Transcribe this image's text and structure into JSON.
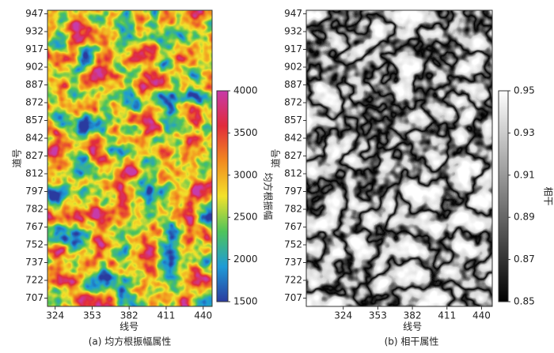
{
  "chart_data": [
    {
      "type": "heatmap",
      "caption": "(a) 均方根振幅属性",
      "xlabel": "线号",
      "ylabel": "道号",
      "xlim": [
        318,
        447
      ],
      "xticks": [
        324,
        353,
        382,
        411,
        440
      ],
      "ylim": [
        700,
        950
      ],
      "yticks": [
        707,
        722,
        737,
        752,
        767,
        782,
        797,
        812,
        827,
        842,
        857,
        872,
        887,
        902,
        917,
        932,
        947
      ],
      "colorbar_label": "均方根振幅",
      "clim": [
        1500,
        4000
      ],
      "cticks": [
        1500,
        2000,
        2500,
        3000,
        3500,
        4000
      ],
      "colormap": [
        "#2b3b9f",
        "#1e9bd7",
        "#4fc45a",
        "#f3e22b",
        "#f28a1f",
        "#e12b3b",
        "#c73ba9"
      ]
    },
    {
      "type": "heatmap",
      "caption": "(b) 相干属性",
      "xlabel": "线号",
      "ylabel": "道号",
      "xlim": [
        293,
        449
      ],
      "xticks": [
        324,
        353,
        382,
        411,
        440
      ],
      "ylim": [
        700,
        950
      ],
      "yticks": [
        707,
        722,
        737,
        752,
        767,
        782,
        797,
        812,
        827,
        842,
        857,
        872,
        887,
        902,
        917,
        932,
        947
      ],
      "colorbar_label": "相干",
      "clim": [
        0.85,
        0.95
      ],
      "cticks": [
        0.85,
        0.87,
        0.89,
        0.91,
        0.93,
        0.95
      ],
      "colormap": [
        "#000000",
        "#ffffff"
      ]
    }
  ]
}
